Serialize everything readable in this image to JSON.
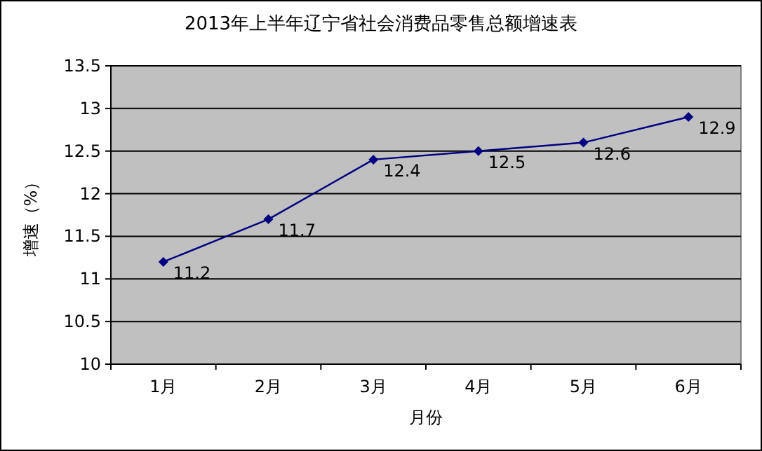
{
  "chart_data": {
    "type": "line",
    "title": "2013年上半年辽宁省社会消费品零售总额增速表",
    "xlabel": "月份",
    "ylabel": "增速（%）",
    "categories": [
      "1月",
      "2月",
      "3月",
      "4月",
      "5月",
      "6月"
    ],
    "series": [
      {
        "color": "#000080",
        "values": [
          11.2,
          11.7,
          12.4,
          12.5,
          12.6,
          12.9
        ]
      }
    ],
    "ylim": [
      10,
      13.5
    ],
    "yticks": [
      10,
      10.5,
      11,
      11.5,
      12,
      12.5,
      13,
      13.5
    ],
    "grid": "y",
    "data_labels": true,
    "marker": "diamond",
    "line_style": "solid"
  }
}
